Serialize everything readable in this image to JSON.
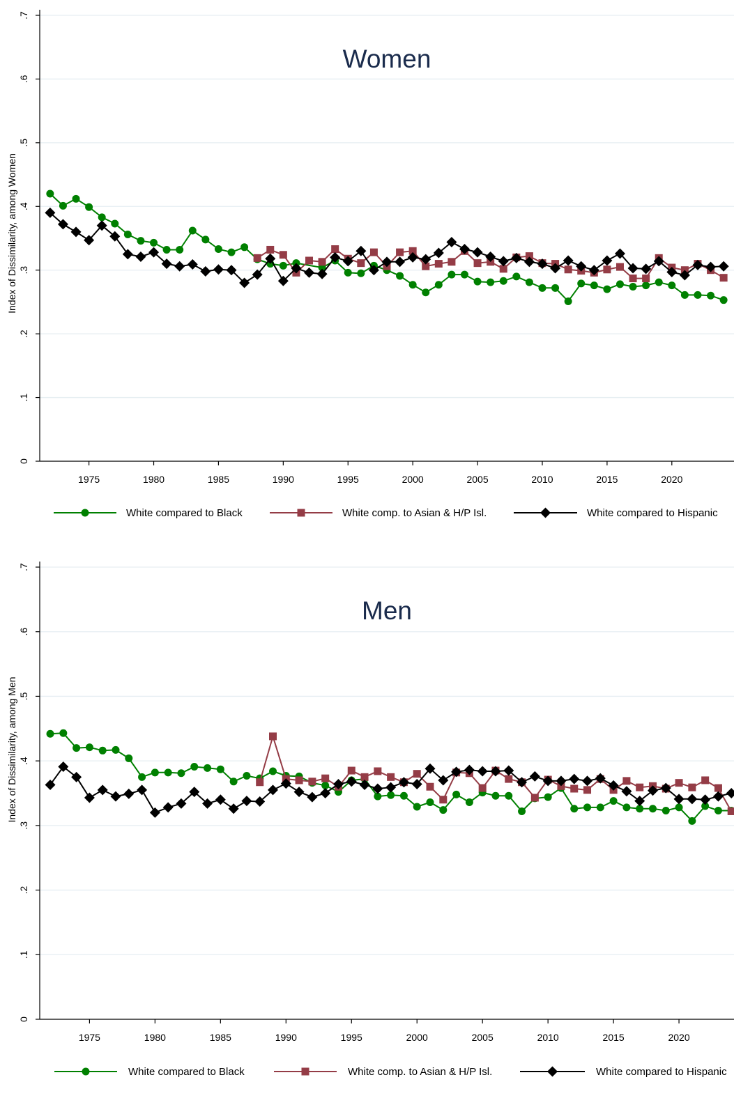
{
  "chart_data": [
    {
      "type": "line",
      "title": "Women",
      "ylabel": "Index of Dissimilarity, among Women",
      "xlabel": "",
      "ylim": [
        0,
        0.7
      ],
      "xlim": [
        1971.2,
        2024.8
      ],
      "x_ticks": [
        1975,
        1980,
        1985,
        1990,
        1995,
        2000,
        2005,
        2010,
        2015,
        2020
      ],
      "x_tick_labels": [
        "1975",
        "1980",
        "1985",
        "1990",
        "1995",
        "2000",
        "2005",
        "2010",
        "2015",
        "2020"
      ],
      "y_ticks": [
        0,
        0.1,
        0.2,
        0.3,
        0.4,
        0.5,
        0.6,
        0.7
      ],
      "y_tick_labels": [
        "0",
        ".1",
        ".2",
        ".3",
        ".4",
        ".5",
        ".6",
        ".7"
      ],
      "grid": true,
      "legend_position": "bottom",
      "series": [
        {
          "name": "White compared to Black",
          "color": "#008000",
          "marker": "circle",
          "x": [
            1972,
            1973,
            1974,
            1975,
            1976,
            1977,
            1978,
            1979,
            1980,
            1981,
            1982,
            1983,
            1984,
            1985,
            1986,
            1987,
            1988,
            1989,
            1990,
            1991,
            1993,
            1994,
            1995,
            1996,
            1997,
            1998,
            1999,
            2000,
            2001,
            2002,
            2003,
            2004,
            2005,
            2006,
            2007,
            2008,
            2009,
            2010,
            2011,
            2012,
            2013,
            2014,
            2015,
            2016,
            2017,
            2018,
            2019,
            2020,
            2021,
            2022,
            2023,
            2024
          ],
          "y": [
            0.42,
            0.401,
            0.412,
            0.399,
            0.383,
            0.373,
            0.356,
            0.346,
            0.343,
            0.332,
            0.332,
            0.362,
            0.348,
            0.333,
            0.328,
            0.336,
            0.317,
            0.31,
            0.307,
            0.311,
            0.304,
            0.315,
            0.296,
            0.295,
            0.307,
            0.3,
            0.291,
            0.277,
            0.265,
            0.277,
            0.293,
            0.293,
            0.282,
            0.281,
            0.283,
            0.29,
            0.281,
            0.272,
            0.272,
            0.251,
            0.279,
            0.276,
            0.27,
            0.278,
            0.274,
            0.276,
            0.281,
            0.276,
            0.261,
            0.261,
            0.26,
            0.253
          ]
        },
        {
          "name": "White comp. to Asian & H/P Isl.",
          "color": "#943C46",
          "marker": "square",
          "x": [
            1988,
            1989,
            1990,
            1991,
            1992,
            1993,
            1994,
            1995,
            1996,
            1997,
            1998,
            1999,
            2000,
            2001,
            2002,
            2003,
            2004,
            2005,
            2006,
            2007,
            2008,
            2009,
            2010,
            2011,
            2012,
            2013,
            2014,
            2015,
            2016,
            2017,
            2018,
            2019,
            2020,
            2021,
            2022,
            2023,
            2024
          ],
          "y": [
            0.319,
            0.332,
            0.324,
            0.296,
            0.315,
            0.313,
            0.333,
            0.318,
            0.311,
            0.328,
            0.306,
            0.328,
            0.33,
            0.306,
            0.31,
            0.313,
            0.33,
            0.311,
            0.313,
            0.302,
            0.32,
            0.322,
            0.311,
            0.31,
            0.301,
            0.299,
            0.296,
            0.301,
            0.305,
            0.287,
            0.287,
            0.319,
            0.304,
            0.3,
            0.31,
            0.3,
            0.288
          ]
        },
        {
          "name": "White compared to Hispanic",
          "color": "#000000",
          "marker": "diamond",
          "x": [
            1972,
            1973,
            1974,
            1975,
            1976,
            1977,
            1978,
            1979,
            1980,
            1981,
            1982,
            1983,
            1984,
            1985,
            1986,
            1987,
            1988,
            1989,
            1990,
            1991,
            1992,
            1993,
            1994,
            1995,
            1996,
            1997,
            1998,
            1999,
            2000,
            2001,
            2002,
            2003,
            2004,
            2005,
            2006,
            2007,
            2008,
            2009,
            2010,
            2011,
            2012,
            2013,
            2014,
            2015,
            2016,
            2017,
            2018,
            2019,
            2020,
            2021,
            2022,
            2023,
            2024
          ],
          "y": [
            0.39,
            0.372,
            0.36,
            0.347,
            0.37,
            0.353,
            0.325,
            0.321,
            0.328,
            0.31,
            0.306,
            0.309,
            0.298,
            0.301,
            0.3,
            0.28,
            0.293,
            0.318,
            0.283,
            0.303,
            0.296,
            0.294,
            0.32,
            0.314,
            0.33,
            0.3,
            0.313,
            0.313,
            0.32,
            0.317,
            0.327,
            0.344,
            0.333,
            0.328,
            0.321,
            0.314,
            0.319,
            0.313,
            0.31,
            0.303,
            0.315,
            0.306,
            0.3,
            0.315,
            0.326,
            0.303,
            0.302,
            0.314,
            0.297,
            0.292,
            0.308,
            0.305,
            0.306
          ]
        }
      ]
    },
    {
      "type": "line",
      "title": "Men",
      "ylabel": "Index of Dissimilarity, among Men",
      "xlabel": "",
      "ylim": [
        0,
        0.7
      ],
      "xlim": [
        1971.2,
        2024.2
      ],
      "x_ticks": [
        1975,
        1980,
        1985,
        1990,
        1995,
        2000,
        2005,
        2010,
        2015,
        2020
      ],
      "x_tick_labels": [
        "1975",
        "1980",
        "1985",
        "1990",
        "1995",
        "2000",
        "2005",
        "2010",
        "2015",
        "2020"
      ],
      "y_ticks": [
        0,
        0.1,
        0.2,
        0.3,
        0.4,
        0.5,
        0.6,
        0.7
      ],
      "y_tick_labels": [
        "0",
        ".1",
        ".2",
        ".3",
        ".4",
        ".5",
        ".6",
        ".7"
      ],
      "grid": true,
      "legend_position": "bottom",
      "series": [
        {
          "name": "White compared to Black",
          "color": "#008000",
          "marker": "circle",
          "x": [
            1972,
            1973,
            1974,
            1975,
            1976,
            1977,
            1978,
            1979,
            1980,
            1981,
            1982,
            1983,
            1984,
            1985,
            1986,
            1987,
            1988,
            1989,
            1990,
            1991,
            1992,
            1993,
            1994,
            1995,
            1996,
            1997,
            1998,
            1999,
            2000,
            2001,
            2002,
            2003,
            2004,
            2005,
            2006,
            2007,
            2008,
            2009,
            2010,
            2011,
            2012,
            2013,
            2014,
            2015,
            2016,
            2017,
            2018,
            2019,
            2020,
            2021,
            2022,
            2023,
            2024
          ],
          "y": [
            0.442,
            0.443,
            0.42,
            0.421,
            0.416,
            0.417,
            0.404,
            0.375,
            0.382,
            0.382,
            0.381,
            0.391,
            0.389,
            0.387,
            0.368,
            0.377,
            0.373,
            0.384,
            0.377,
            0.376,
            0.366,
            0.362,
            0.352,
            0.37,
            0.372,
            0.345,
            0.347,
            0.346,
            0.329,
            0.336,
            0.324,
            0.348,
            0.336,
            0.351,
            0.346,
            0.346,
            0.322,
            0.342,
            0.344,
            0.358,
            0.326,
            0.328,
            0.328,
            0.338,
            0.328,
            0.326,
            0.326,
            0.323,
            0.328,
            0.307,
            0.33,
            0.323,
            0.323
          ]
        },
        {
          "name": "White comp. to Asian & H/P Isl.",
          "color": "#943C46",
          "marker": "square",
          "x": [
            1988,
            1989,
            1990,
            1991,
            1992,
            1993,
            1994,
            1995,
            1996,
            1997,
            1998,
            1999,
            2000,
            2001,
            2002,
            2003,
            2004,
            2005,
            2006,
            2007,
            2008,
            2009,
            2010,
            2011,
            2012,
            2013,
            2014,
            2015,
            2016,
            2017,
            2018,
            2019,
            2020,
            2021,
            2022,
            2023,
            2024
          ],
          "y": [
            0.367,
            0.438,
            0.372,
            0.37,
            0.368,
            0.373,
            0.36,
            0.385,
            0.375,
            0.384,
            0.375,
            0.367,
            0.38,
            0.36,
            0.34,
            0.382,
            0.381,
            0.358,
            0.385,
            0.372,
            0.367,
            0.343,
            0.371,
            0.361,
            0.357,
            0.355,
            0.372,
            0.355,
            0.369,
            0.359,
            0.361,
            0.357,
            0.366,
            0.359,
            0.37,
            0.358,
            0.322
          ]
        },
        {
          "name": "White compared to Hispanic",
          "color": "#000000",
          "marker": "diamond",
          "x": [
            1972,
            1973,
            1974,
            1975,
            1976,
            1977,
            1978,
            1979,
            1980,
            1981,
            1982,
            1983,
            1984,
            1985,
            1986,
            1987,
            1988,
            1989,
            1990,
            1991,
            1992,
            1993,
            1994,
            1995,
            1996,
            1997,
            1998,
            1999,
            2000,
            2001,
            2002,
            2003,
            2004,
            2005,
            2006,
            2007,
            2008,
            2009,
            2010,
            2011,
            2012,
            2013,
            2014,
            2015,
            2016,
            2017,
            2018,
            2019,
            2020,
            2021,
            2022,
            2023,
            2024
          ],
          "y": [
            0.363,
            0.391,
            0.375,
            0.343,
            0.355,
            0.345,
            0.349,
            0.355,
            0.32,
            0.328,
            0.334,
            0.352,
            0.334,
            0.34,
            0.326,
            0.338,
            0.337,
            0.355,
            0.365,
            0.352,
            0.344,
            0.35,
            0.364,
            0.368,
            0.363,
            0.357,
            0.359,
            0.367,
            0.364,
            0.388,
            0.37,
            0.383,
            0.386,
            0.384,
            0.384,
            0.385,
            0.367,
            0.376,
            0.369,
            0.369,
            0.372,
            0.369,
            0.373,
            0.362,
            0.353,
            0.338,
            0.354,
            0.358,
            0.341,
            0.341,
            0.34,
            0.345,
            0.35
          ]
        }
      ]
    }
  ]
}
